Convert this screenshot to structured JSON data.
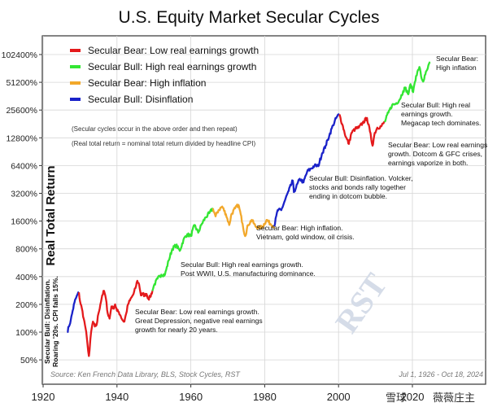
{
  "chart_data": {
    "type": "line",
    "title": "U.S. Equity Market Secular Cycles",
    "ylabel": "Real Total Return",
    "xlabel": "",
    "yscale": "log",
    "xlim": [
      1920,
      2027
    ],
    "ylim": [
      37,
      180000
    ],
    "grid": true,
    "legend_position": "top-left",
    "y_ticks": [
      50,
      100,
      200,
      400,
      800,
      1600,
      3200,
      6400,
      12800,
      25600,
      51200,
      102400
    ],
    "y_tick_labels": [
      "50%",
      "100%",
      "200%",
      "400%",
      "800%",
      "1600%",
      "3200%",
      "6400%",
      "12800%",
      "25600%",
      "51200%",
      "102400%"
    ],
    "x_ticks": [
      1920,
      1940,
      1960,
      1980,
      2000,
      2020
    ],
    "x_tick_labels": [
      "1920",
      "1940",
      "1960",
      "1980",
      "2000",
      "2020"
    ],
    "legend": [
      {
        "label": "Secular Bear: Low real earnings growth",
        "color": "#e41a1c"
      },
      {
        "label": "Secular Bull: High real earnings growth",
        "color": "#33e633"
      },
      {
        "label": "Secular Bear: High inflation",
        "color": "#f2a82b"
      },
      {
        "label": "Secular Bull: Disinflation",
        "color": "#1a22c9"
      }
    ],
    "series": [
      {
        "regime": "Secular Bull: Disinflation",
        "color": "#1a22c9",
        "x": [
          1926.5,
          1927.0,
          1927.5,
          1928.0,
          1928.5,
          1929.0,
          1929.7
        ],
        "y": [
          100,
          115,
          135,
          170,
          210,
          240,
          270
        ]
      },
      {
        "regime": "Secular Bear: Low real earnings growth",
        "color": "#e41a1c",
        "x": [
          1929.7,
          1930.0,
          1930.5,
          1931.0,
          1931.5,
          1932.0,
          1932.4,
          1932.6,
          1933.0,
          1933.5,
          1934.0,
          1934.5,
          1935.0,
          1935.5,
          1936.0,
          1936.5,
          1937.0,
          1937.5,
          1938.0,
          1938.5,
          1939.0,
          1939.5,
          1940.0,
          1940.5,
          1941.0,
          1941.5,
          1942.0,
          1942.5,
          1943.0,
          1943.5,
          1944.0,
          1944.5,
          1945.0,
          1945.5,
          1946.0,
          1946.5,
          1947.0,
          1947.5,
          1948.0,
          1948.5,
          1949.0,
          1949.6
        ],
        "y": [
          270,
          215,
          180,
          140,
          110,
          75,
          55,
          65,
          100,
          130,
          115,
          120,
          160,
          200,
          250,
          280,
          230,
          160,
          140,
          190,
          180,
          200,
          170,
          165,
          150,
          135,
          130,
          160,
          200,
          220,
          240,
          260,
          300,
          360,
          330,
          250,
          260,
          250,
          260,
          230,
          240,
          280
        ]
      },
      {
        "regime": "Secular Bull: High real earnings growth",
        "color": "#33e633",
        "x": [
          1949.6,
          1950.0,
          1951.0,
          1952.0,
          1953.0,
          1954.0,
          1955.0,
          1956.0,
          1957.0,
          1958.0,
          1959.0,
          1960.0,
          1961.0,
          1962.0,
          1963.0,
          1964.0,
          1965.0,
          1966.0
        ],
        "y": [
          280,
          320,
          380,
          420,
          420,
          600,
          800,
          880,
          760,
          1000,
          1150,
          1100,
          1450,
          1200,
          1500,
          1750,
          1950,
          2200
        ]
      },
      {
        "regime": "Secular Bear: High inflation",
        "color": "#f2a82b",
        "x": [
          1966.0,
          1966.7,
          1967.5,
          1968.5,
          1969.5,
          1970.4,
          1971.0,
          1972.0,
          1972.9,
          1973.5,
          1974.0,
          1974.7,
          1975.5,
          1976.5,
          1977.5,
          1978.5,
          1979.5,
          1980.5,
          1981.5,
          1982.6
        ],
        "y": [
          2200,
          1800,
          2100,
          2300,
          1900,
          1450,
          1900,
          2200,
          2400,
          1900,
          1500,
          1100,
          1450,
          1650,
          1400,
          1350,
          1400,
          1650,
          1500,
          1400
        ]
      },
      {
        "regime": "Secular Bull: Disinflation",
        "color": "#1a22c9",
        "x": [
          1982.6,
          1983.5,
          1984.5,
          1985.5,
          1986.5,
          1987.6,
          1987.9,
          1988.5,
          1989.5,
          1990.5,
          1991.5,
          1992.5,
          1993.5,
          1994.5,
          1995.5,
          1996.5,
          1997.5,
          1998.5,
          1999.5,
          2000.2
        ],
        "y": [
          1400,
          2100,
          2100,
          2700,
          3400,
          4400,
          3300,
          3700,
          4600,
          4200,
          5500,
          5900,
          6400,
          6300,
          8600,
          10500,
          13600,
          17500,
          21500,
          23000
        ]
      },
      {
        "regime": "Secular Bear: Low real earnings growth",
        "color": "#e41a1c",
        "x": [
          2000.2,
          2001.0,
          2002.0,
          2002.8,
          2003.5,
          2004.5,
          2005.5,
          2006.5,
          2007.7,
          2008.5,
          2009.2,
          2009.8,
          2010.5,
          2011.5,
          2012.5
        ],
        "y": [
          23000,
          18000,
          13000,
          11000,
          14500,
          16000,
          16500,
          18500,
          21000,
          15000,
          10500,
          14500,
          16500,
          17000,
          19000
        ]
      },
      {
        "regime": "Secular Bull: High real earnings growth",
        "color": "#33e633",
        "x": [
          2012.5,
          2013.5,
          2014.5,
          2015.5,
          2016.5,
          2017.5,
          2018.0,
          2018.9,
          2019.5,
          2020.2,
          2020.5,
          2021.0,
          2021.9,
          2022.5,
          2022.9,
          2023.5,
          2024.0,
          2024.8
        ],
        "y": [
          19000,
          24000,
          29000,
          30000,
          33000,
          41000,
          45000,
          38000,
          49000,
          40000,
          48000,
          60000,
          75000,
          56000,
          52000,
          62000,
          70000,
          85000
        ]
      }
    ],
    "annotations": [
      {
        "lines": [
          "Secular Bear:",
          "High inflation"
        ],
        "year": 2024.5
      },
      {
        "lines": [
          "Secular Bull: High real",
          "earnings growth.",
          "Megacap tech dominates."
        ],
        "year": 2012.5
      },
      {
        "lines": [
          "Secular Bear: Low real earnings",
          "growth. Dotcom & GFC crises,",
          "earnings vaporize in both."
        ],
        "year": 2000.2
      },
      {
        "lines": [
          "Secular Bull: Disinflation. Volcker,",
          "stocks and bonds rally together",
          "ending in dotcom bubble."
        ],
        "year": 1982.6
      },
      {
        "lines": [
          "Secular Bear: High inflation.",
          "Vietnam, gold window, oil crisis."
        ],
        "year": 1966.0
      },
      {
        "lines": [
          "Secular Bull: High real earnings growth.",
          "Post WWII, U.S. manufacturing dominance."
        ],
        "year": 1949.6
      },
      {
        "lines": [
          "Secular Bear: Low real earnings growth.",
          "Great Depression, negative real earnings",
          "growth for nearly 20 years."
        ],
        "year": 1929.7
      }
    ],
    "side_note": [
      "Secular Bull: Disinflation.",
      "Roaring '20s. CPI falls 15%."
    ],
    "notes": [
      "(Secular cycles occur in the above order and then repeat)",
      "(Real total return = nominal total return divided by headline CPI)"
    ],
    "source": "Source: Ken French Data Library, BLS, Stock Cycles, RST",
    "date_range": "Jul 1, 1926 - Oct 18, 2024",
    "watermark": "RST",
    "bottom_marks": [
      "雪球",
      "薇薇庄主"
    ]
  }
}
